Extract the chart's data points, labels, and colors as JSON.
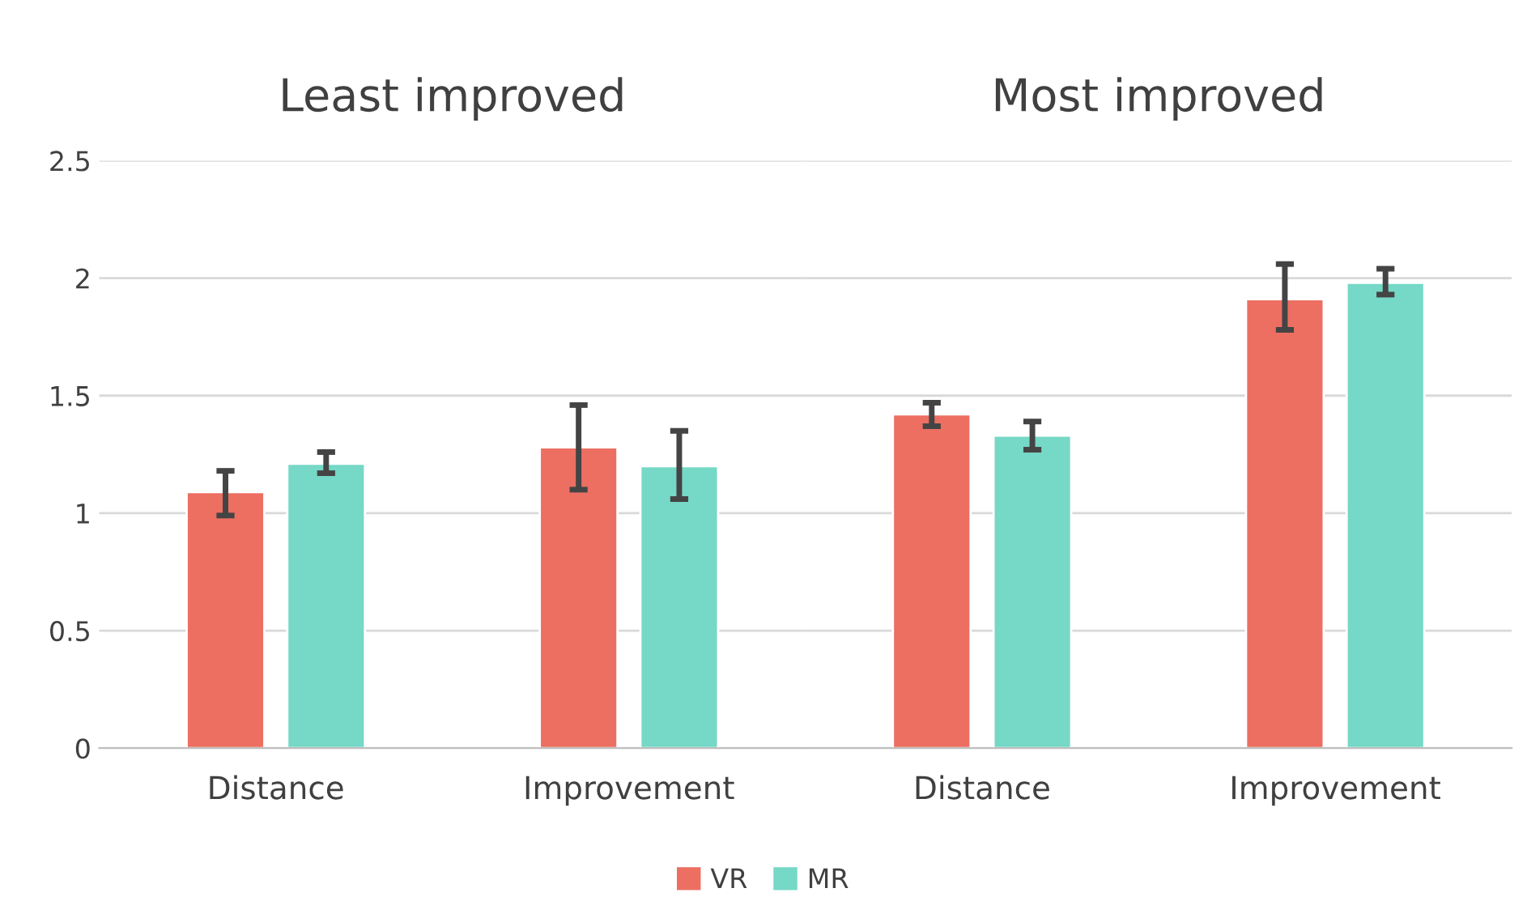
{
  "chart_data": [
    {
      "type": "bar",
      "title": "Least improved",
      "categories": [
        "Distance",
        "Improvement"
      ],
      "ylim": [
        0,
        2.5
      ],
      "yticks": [
        0,
        0.5,
        1,
        1.5,
        2,
        2.5
      ],
      "grid": "y",
      "legend": "bottom",
      "series": [
        {
          "name": "VR",
          "color": "#ec6f62",
          "values": [
            1.09,
            1.28
          ],
          "errors": [
            [
              0.99,
              1.18
            ],
            [
              1.1,
              1.46
            ]
          ]
        },
        {
          "name": "MR",
          "color": "#76d8c6",
          "values": [
            1.21,
            1.2
          ],
          "errors": [
            [
              1.17,
              1.26
            ],
            [
              1.06,
              1.35
            ]
          ]
        }
      ]
    },
    {
      "type": "bar",
      "title": "Most improved",
      "categories": [
        "Distance",
        "Improvement"
      ],
      "ylim": [
        0,
        2.5
      ],
      "yticks": [
        0,
        0.5,
        1,
        1.5,
        2,
        2.5
      ],
      "grid": "y",
      "tick_labels": "x",
      "series": [
        {
          "color": "#ec6f62",
          "values": [
            1.42,
            1.91
          ],
          "errors": [
            [
              1.37,
              1.47
            ],
            [
              1.78,
              2.06
            ]
          ]
        },
        {
          "color": "#76d8c6",
          "values": [
            1.33,
            1.98
          ],
          "errors": [
            [
              1.27,
              1.39
            ],
            [
              1.93,
              2.04
            ]
          ]
        }
      ]
    }
  ]
}
